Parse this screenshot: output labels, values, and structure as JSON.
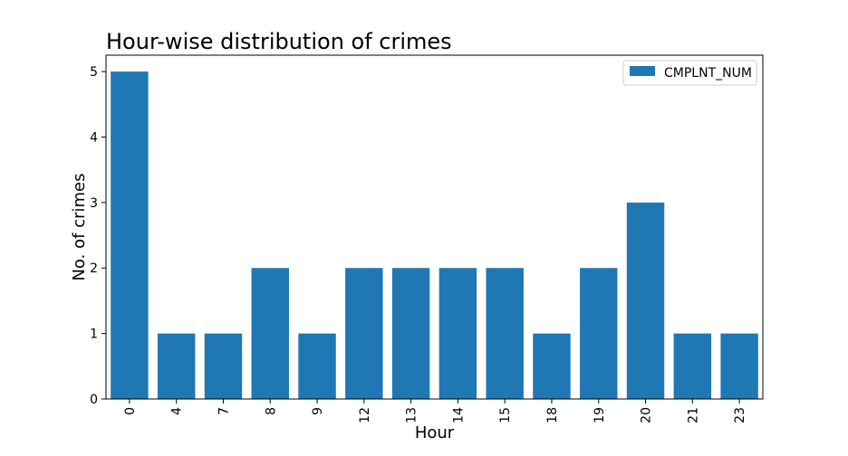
{
  "chart_data": {
    "type": "bar",
    "title": "Hour-wise distribution of crimes",
    "xlabel": "Hour",
    "ylabel": "No. of crimes",
    "categories": [
      "0",
      "4",
      "7",
      "8",
      "9",
      "12",
      "13",
      "14",
      "15",
      "18",
      "19",
      "20",
      "21",
      "23"
    ],
    "series": [
      {
        "name": "CMPLNT_NUM",
        "values": [
          5,
          1,
          1,
          2,
          1,
          2,
          2,
          2,
          2,
          1,
          2,
          3,
          1,
          1
        ],
        "color": "#1f77b4"
      }
    ],
    "ylim": [
      0,
      5.25
    ],
    "yticks": [
      0,
      1,
      2,
      3,
      4,
      5
    ],
    "grid": false,
    "legend_position": "top-right",
    "xtick_rotation": "vertical"
  }
}
